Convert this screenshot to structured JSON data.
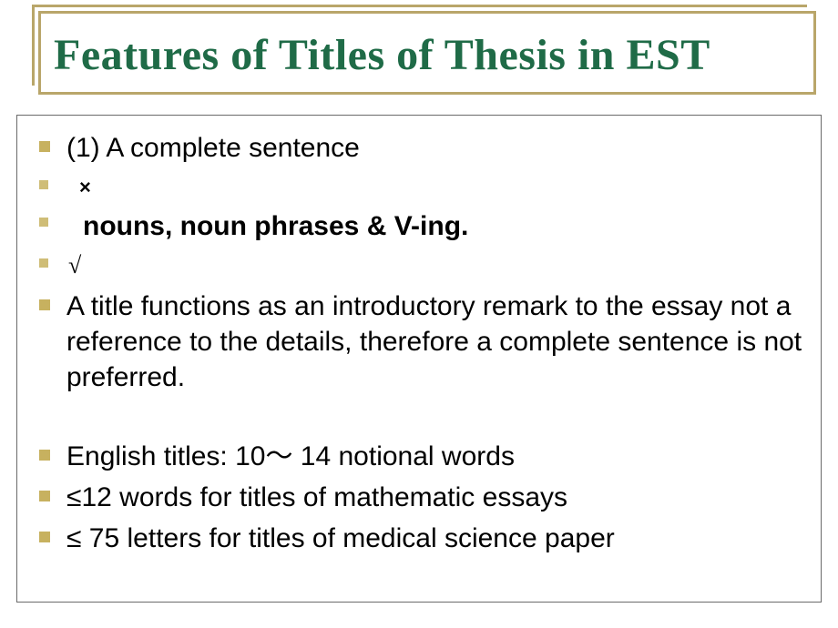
{
  "colors": {
    "title_color": "#1f6b47",
    "border_color": "#b9a66a",
    "bullet_color": "#c7b15f",
    "text_color": "#000000",
    "background": "#ffffff",
    "content_border": "#6a6a6a"
  },
  "typography": {
    "title_font": "Times New Roman",
    "title_size_pt": 36,
    "title_weight": "bold",
    "body_font": "Arial",
    "body_size_pt": 22
  },
  "title": "Features of Titles of Thesis in EST",
  "items": [
    {
      "text": "(1) A complete sentence",
      "bold": false,
      "indent": false,
      "bullet": "normal"
    },
    {
      "text": "×",
      "bold": false,
      "indent": false,
      "bullet": "small",
      "symbol": "x"
    },
    {
      "text": "nouns, noun phrases & V-ing.",
      "bold": true,
      "indent": true,
      "bullet": "small"
    },
    {
      "text": "√",
      "bold": false,
      "indent": false,
      "bullet": "small",
      "symbol": "check"
    },
    {
      "text": "A title functions as an introductory remark to the essay not a reference to the details, therefore a complete sentence is not preferred.",
      "bold": false,
      "indent": false,
      "bullet": "normal"
    },
    {
      "spacer": true
    },
    {
      "text": "English titles: 10～ 14 notional words",
      "bold": false,
      "indent": false,
      "bullet": "normal"
    },
    {
      "text": "≤12 words for titles of mathematic essays",
      "bold": false,
      "indent": false,
      "bullet": "normal"
    },
    {
      "text": "≤ 75 letters for titles of medical science paper",
      "bold": false,
      "indent": false,
      "bullet": "normal"
    }
  ]
}
